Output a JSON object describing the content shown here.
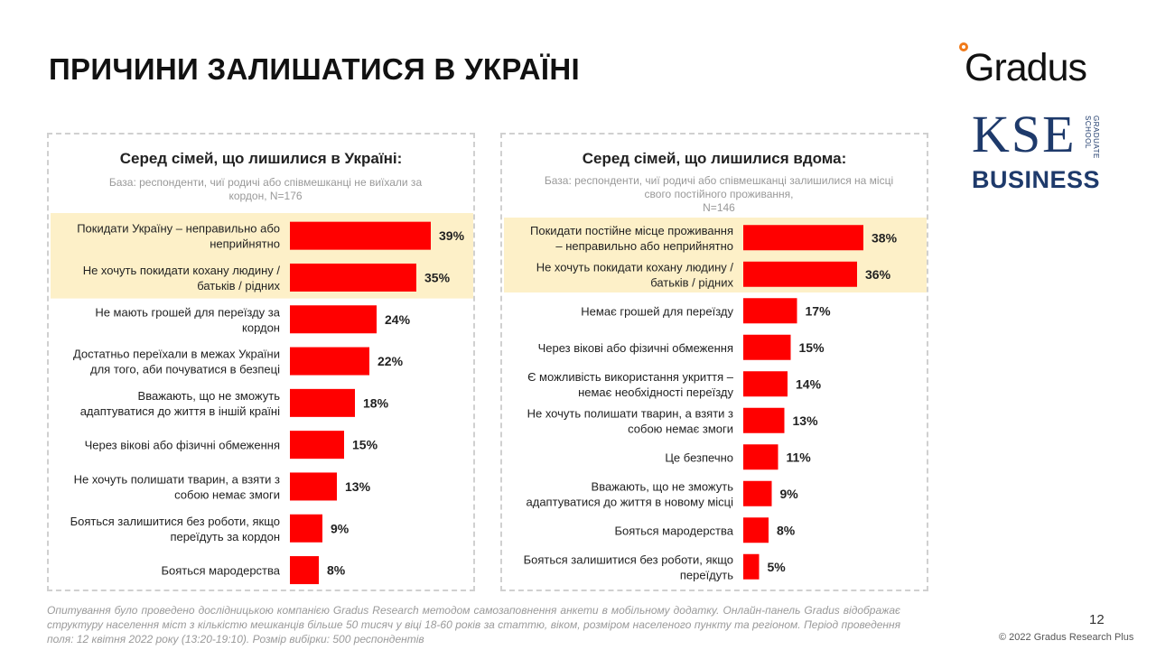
{
  "title": "ПРИЧИНИ ЗАЛИШАТИСЯ В УКРАЇНІ",
  "logos": {
    "gradus": "Gradus",
    "kse_main": "KSE",
    "kse_side_1": "GRADUATE",
    "kse_side_2": "SCHOOL",
    "kse_business": "BUSINESS"
  },
  "colors": {
    "bar": "#ff0000",
    "highlight": "#fdf0c8",
    "kse_navy": "#1e3a6b",
    "gradus_orange": "#f07a1a"
  },
  "chart_data": [
    {
      "type": "bar",
      "orientation": "horizontal",
      "title": "Серед сімей, що лишилися в Україні:",
      "subtitle": [
        "База: респонденти, чиї родичі або співмешканці не виїхали за",
        "кордон, N=176"
      ],
      "xlim": [
        0,
        100
      ],
      "highlighted_count": 2,
      "categories": [
        [
          "Покидати Україну – неправильно або",
          "неприйнятно"
        ],
        [
          "Не хочуть покидати кохану людину /",
          "батьків / рідних"
        ],
        [
          "Не мають грошей для переїзду за",
          "кордон"
        ],
        [
          "Достатньо переїхали в межах України",
          "для того, аби почуватися в безпеці"
        ],
        [
          "Вважають, що не зможуть",
          "адаптуватися до життя в іншій країні"
        ],
        [
          "Через вікові або фізичні обмеження"
        ],
        [
          "Не хочуть полишати тварин, а взяти з",
          "собою немає змоги"
        ],
        [
          "Бояться залишитися без роботи, якщо",
          "переїдуть за кордон"
        ],
        [
          "Бояться мародерства"
        ]
      ],
      "values": [
        39,
        35,
        24,
        22,
        18,
        15,
        13,
        9,
        8
      ],
      "value_labels": [
        "39%",
        "35%",
        "24%",
        "22%",
        "18%",
        "15%",
        "13%",
        "9%",
        "8%"
      ]
    },
    {
      "type": "bar",
      "orientation": "horizontal",
      "title": "Серед сімей, що лишилися вдома:",
      "subtitle": [
        "База: респонденти, чиї родичі або співмешканці залишилися на місці",
        "свого постійного проживання,",
        "N=146"
      ],
      "xlim": [
        0,
        100
      ],
      "highlighted_count": 2,
      "categories": [
        [
          "Покидати постійне місце проживання",
          "– неправильно або неприйнятно"
        ],
        [
          "Не хочуть покидати кохану людину /",
          "батьків / рідних"
        ],
        [
          "Немає грошей для переїзду"
        ],
        [
          "Через вікові або фізичні обмеження"
        ],
        [
          "Є можливість використання укриття –",
          "немає необхідності переїзду"
        ],
        [
          "Не хочуть полишати тварин, а взяти з",
          "собою немає змоги"
        ],
        [
          "Це безпечно"
        ],
        [
          "Вважають, що не зможуть",
          "адаптуватися до життя в новому місці"
        ],
        [
          "Бояться мародерства"
        ],
        [
          "Бояться залишитися без роботи, якщо",
          "переїдуть"
        ]
      ],
      "values": [
        38,
        36,
        17,
        15,
        14,
        13,
        11,
        9,
        8,
        5
      ],
      "value_labels": [
        "38%",
        "36%",
        "17%",
        "15%",
        "14%",
        "13%",
        "11%",
        "9%",
        "8%",
        "5%"
      ]
    }
  ],
  "footnote": "Опитування було проведено дослідницькою компанією Gradus Research методом самозаповнення анкети в мобільному додатку. Онлайн-панель Gradus відображає структуру населення міст з кількістю мешканців більше 50 тисяч у віці 18-60 років за статтю, віком, розміром населеного пункту та регіоном. Період проведення поля: 12 квітня 2022 року (13:20-19:10). Розмір вибірки: 500 респондентів",
  "page_number": "12",
  "copyright": "© 2022 Gradus Research Plus"
}
